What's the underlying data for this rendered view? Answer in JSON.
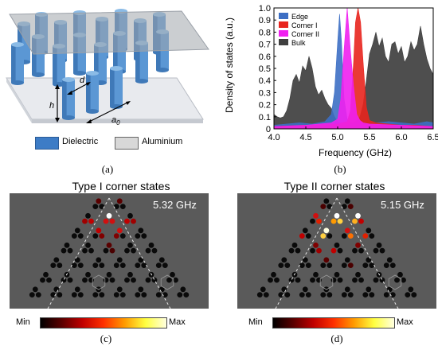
{
  "panel_labels": {
    "a": "(a)",
    "b": "(b)",
    "c": "(c)",
    "d": "(d)"
  },
  "schematic": {
    "labels": {
      "h": "h",
      "d": "d",
      "a0": "a",
      "a0_sub": "0"
    },
    "legend": {
      "dielectric": "Dielectric",
      "aluminium": "Aluminium"
    },
    "colors": {
      "dielectric": "#3d7cc6",
      "aluminium": "#d8d8d8"
    }
  },
  "chart_data": {
    "type": "area",
    "xlabel": "Frequency (GHz)",
    "ylabel": "Density of states (a.u.)",
    "xlim": [
      4.0,
      6.5
    ],
    "ylim": [
      0,
      1
    ],
    "xticks": [
      "4.0",
      "4.5",
      "5.0",
      "5.5",
      "6.0",
      "6.5"
    ],
    "yticks": [
      "0",
      "0.1",
      "0.2",
      "0.3",
      "0.4",
      "0.5",
      "0.6",
      "0.7",
      "0.8",
      "0.9",
      "1.0"
    ],
    "legend_position": "top-left",
    "series": [
      {
        "name": "Bulk",
        "color": "#3f3f3f",
        "x": [
          4.0,
          4.05,
          4.1,
          4.15,
          4.2,
          4.25,
          4.3,
          4.35,
          4.4,
          4.45,
          4.5,
          4.55,
          4.6,
          4.65,
          4.7,
          4.75,
          4.8,
          4.85,
          4.9,
          4.95,
          5.0,
          5.05,
          5.1,
          5.15,
          5.2,
          5.25,
          5.3,
          5.35,
          5.4,
          5.45,
          5.5,
          5.55,
          5.6,
          5.65,
          5.7,
          5.75,
          5.8,
          5.85,
          5.9,
          5.95,
          6.0,
          6.05,
          6.1,
          6.15,
          6.2,
          6.25,
          6.3,
          6.35,
          6.4,
          6.45,
          6.5
        ],
        "values": [
          0.12,
          0.1,
          0.09,
          0.1,
          0.15,
          0.25,
          0.4,
          0.45,
          0.38,
          0.52,
          0.48,
          0.6,
          0.5,
          0.35,
          0.28,
          0.32,
          0.25,
          0.2,
          0.17,
          0.1,
          0.06,
          0.04,
          0.03,
          0.03,
          0.04,
          0.05,
          0.07,
          0.1,
          0.2,
          0.4,
          0.62,
          0.7,
          0.8,
          0.68,
          0.75,
          0.6,
          0.55,
          0.7,
          0.72,
          0.62,
          0.68,
          0.55,
          0.6,
          0.72,
          0.65,
          0.7,
          0.85,
          0.7,
          0.58,
          0.5,
          0.45
        ]
      },
      {
        "name": "Edge",
        "color": "#3d6fc4",
        "x": [
          4.0,
          4.2,
          4.4,
          4.6,
          4.8,
          4.9,
          4.95,
          5.0,
          5.03,
          5.06,
          5.1,
          5.15,
          5.2,
          5.4,
          5.6,
          5.8,
          6.0,
          6.2,
          6.4,
          6.5
        ],
        "values": [
          0.03,
          0.04,
          0.05,
          0.04,
          0.06,
          0.12,
          0.3,
          0.72,
          0.95,
          0.72,
          0.25,
          0.08,
          0.05,
          0.04,
          0.05,
          0.06,
          0.05,
          0.04,
          0.06,
          0.05
        ]
      },
      {
        "name": "Corner I",
        "color": "#e8251e",
        "x": [
          4.0,
          4.5,
          5.0,
          5.15,
          5.2,
          5.25,
          5.28,
          5.32,
          5.36,
          5.4,
          5.45,
          5.5,
          5.6,
          5.8,
          6.0,
          6.2,
          6.5
        ],
        "values": [
          0.02,
          0.03,
          0.04,
          0.06,
          0.15,
          0.55,
          0.88,
          1.0,
          0.88,
          0.55,
          0.18,
          0.07,
          0.05,
          0.04,
          0.03,
          0.03,
          0.02
        ]
      },
      {
        "name": "Corner II",
        "color": "#f020f0",
        "x": [
          4.0,
          4.5,
          4.9,
          5.0,
          5.05,
          5.1,
          5.15,
          5.2,
          5.25,
          5.3,
          5.35,
          5.4,
          5.5,
          6.0,
          6.5
        ],
        "values": [
          0.02,
          0.03,
          0.05,
          0.08,
          0.25,
          0.65,
          1.0,
          0.65,
          0.35,
          0.12,
          0.07,
          0.05,
          0.04,
          0.03,
          0.02
        ]
      }
    ]
  },
  "maps": [
    {
      "title": "Type I corner states",
      "frequency": "5.32 GHz"
    },
    {
      "title": "Type II corner states",
      "frequency": "5.15 GHz"
    }
  ],
  "colorbar": {
    "min": "Min",
    "max": "Max"
  }
}
